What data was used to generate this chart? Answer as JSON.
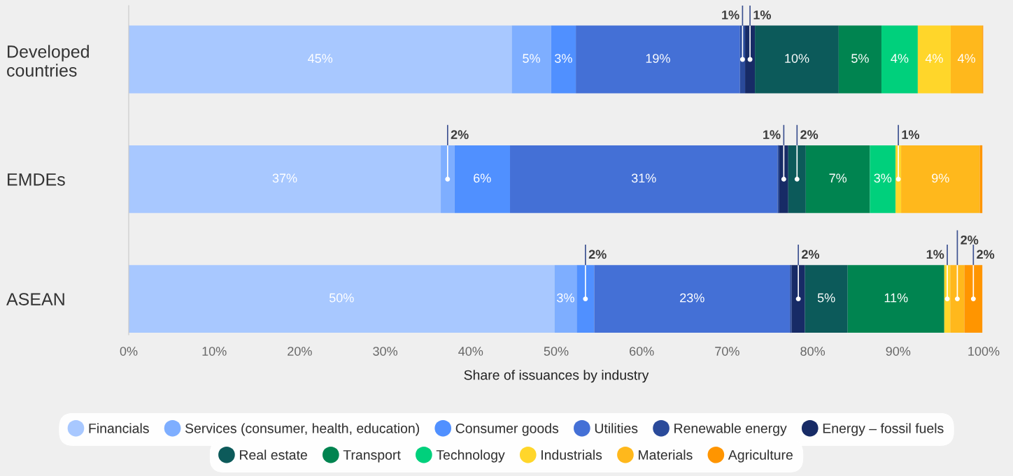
{
  "chart_data": {
    "type": "bar",
    "orientation": "horizontal",
    "stacked": true,
    "xlabel": "Share of issuances by industry",
    "categories": [
      "Developed\ncountries",
      "EMDEs",
      "ASEAN"
    ],
    "xlim": [
      0,
      100
    ],
    "xticks": [
      {
        "value": 0,
        "label": "0%"
      },
      {
        "value": 10,
        "label": "10%"
      },
      {
        "value": 20,
        "label": "20%"
      },
      {
        "value": 30,
        "label": "30%"
      },
      {
        "value": 40,
        "label": "40%"
      },
      {
        "value": 50,
        "label": "50%"
      },
      {
        "value": 60,
        "label": "60%"
      },
      {
        "value": 70,
        "label": "70%"
      },
      {
        "value": 80,
        "label": "80%"
      },
      {
        "value": 90,
        "label": "90%"
      },
      {
        "value": 100,
        "label": "100%"
      }
    ],
    "legend": "bottom",
    "grid": false,
    "series": [
      {
        "name": "Financials",
        "color": "#a8c8ff",
        "values": [
          44.8,
          36.5,
          49.8
        ],
        "value_labels": [
          "45%",
          "37%",
          "50%"
        ]
      },
      {
        "name": "Services (consumer, health, education)",
        "color": "#7eaeff",
        "values": [
          4.6,
          1.6,
          2.6
        ],
        "value_labels": [
          "5%",
          "2%",
          "3%"
        ]
      },
      {
        "name": "Consumer goods",
        "color": "#5090ff",
        "values": [
          2.9,
          6.5,
          2.05
        ],
        "value_labels": [
          "3%",
          "6%",
          "2%"
        ]
      },
      {
        "name": "Utilities",
        "color": "#4470d6",
        "values": [
          19.2,
          31.3,
          22.9
        ],
        "value_labels": [
          "19%",
          "31%",
          "23%"
        ]
      },
      {
        "name": "Renewable energy",
        "color": "#2a4a9a",
        "values": [
          0.6,
          0.2,
          0.2
        ],
        "value_labels": [
          "1%",
          null,
          null
        ]
      },
      {
        "name": "Energy – fossil fuels",
        "color": "#172b66",
        "values": [
          1.15,
          1.05,
          1.55
        ],
        "value_labels": [
          "1%",
          "1%",
          "2%"
        ]
      },
      {
        "name": "Real estate",
        "color": "#0c5a5a",
        "values": [
          9.8,
          2.05,
          5.0
        ],
        "value_labels": [
          "10%",
          "2%",
          "5%"
        ]
      },
      {
        "name": "Transport",
        "color": "#008450",
        "values": [
          5.0,
          7.5,
          11.3
        ],
        "value_labels": [
          "5%",
          "7%",
          "11%"
        ]
      },
      {
        "name": "Technology",
        "color": "#00d07c",
        "values": [
          4.25,
          3.0,
          0
        ],
        "value_labels": [
          "4%",
          "3%",
          null
        ]
      },
      {
        "name": "Industrials",
        "color": "#ffd62a",
        "values": [
          3.85,
          0.65,
          0.7
        ],
        "value_labels": [
          "4%",
          "1%",
          "1%"
        ]
      },
      {
        "name": "Materials",
        "color": "#ffb81c",
        "values": [
          3.7,
          9.2,
          1.65
        ],
        "value_labels": [
          "4%",
          "9%",
          "2%"
        ]
      },
      {
        "name": "Agriculture",
        "color": "#ff9500",
        "values": [
          0.1,
          0.3,
          2.1
        ],
        "value_labels": [
          null,
          null,
          "2%"
        ]
      }
    ]
  }
}
